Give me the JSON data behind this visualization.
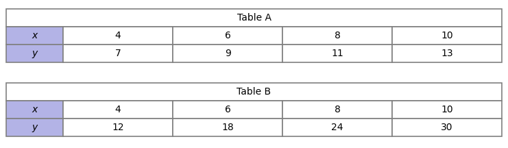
{
  "table_a": {
    "title": "Table A",
    "headers": [
      "x",
      "y"
    ],
    "x_values": [
      "4",
      "6",
      "8",
      "10"
    ],
    "y_values": [
      "7",
      "9",
      "11",
      "13"
    ]
  },
  "table_b": {
    "title": "Table B",
    "headers": [
      "x",
      "y"
    ],
    "x_values": [
      "4",
      "6",
      "8",
      "10"
    ],
    "y_values": [
      "12",
      "18",
      "24",
      "30"
    ]
  },
  "header_bg_color": "#b3b3e6",
  "cell_bg_color": "#ffffff",
  "border_color": "#808080",
  "font_size": 10,
  "title_font_size": 10,
  "fig_bg_color": "#ffffff",
  "fig_width": 7.41,
  "fig_height": 2.16,
  "dpi": 100
}
